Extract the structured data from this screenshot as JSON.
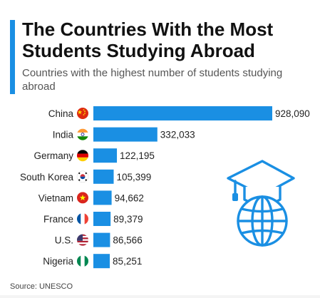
{
  "header": {
    "title": "The Countries With the Most Students Studying Abroad",
    "subtitle": "Countries with the highest number of students studying abroad"
  },
  "footer": {
    "source": "Source: UNESCO"
  },
  "colors": {
    "accent": "#1a8fe3",
    "bar": "#1a8fe3",
    "icon": "#1a8fe3"
  },
  "chart_data": {
    "type": "bar",
    "orientation": "horizontal",
    "title": "The Countries With the Most Students Studying Abroad",
    "subtitle": "Countries with the highest number of students studying abroad",
    "categories": [
      "China",
      "India",
      "Germany",
      "South Korea",
      "Vietnam",
      "France",
      "U.S.",
      "Nigeria"
    ],
    "values": [
      928090,
      332033,
      122195,
      105399,
      94662,
      89379,
      86566,
      85251
    ],
    "value_labels": [
      "928,090",
      "332,033",
      "122,195",
      "105,399",
      "94,662",
      "89,379",
      "86,566",
      "85,251"
    ],
    "flag_icons": [
      "china-flag-icon",
      "india-flag-icon",
      "germany-flag-icon",
      "south-korea-flag-icon",
      "vietnam-flag-icon",
      "france-flag-icon",
      "us-flag-icon",
      "nigeria-flag-icon"
    ],
    "xlim": [
      0,
      928090
    ],
    "grid": false,
    "legend": "none",
    "decoration": "graduation-globe-icon"
  }
}
